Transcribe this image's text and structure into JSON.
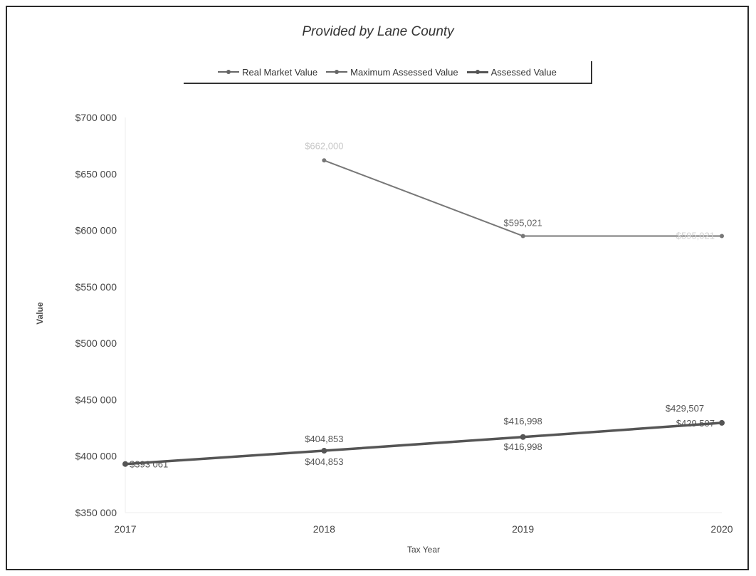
{
  "chart_data": {
    "type": "line",
    "title": "Provided by Lane County",
    "xlabel": "Tax Year",
    "ylabel": "Value",
    "x": [
      "2017",
      "2018",
      "2019",
      "2020"
    ],
    "y_ticks": [
      "$350 000",
      "$400 000",
      "$450 000",
      "$500 000",
      "$550 000",
      "$600 000",
      "$650 000",
      "$700 000"
    ],
    "ylim": [
      350000,
      700000
    ],
    "grid": false,
    "legend_position": "top",
    "series": [
      {
        "name": "Real Market Value",
        "values": [
          null,
          662000,
          595021,
          595021
        ],
        "labels": [
          "",
          "$662,000",
          "$595,021",
          "$595,021"
        ],
        "color": "#777777"
      },
      {
        "name": "Maximum Assessed Value",
        "values": [
          393061,
          404853,
          416998,
          429507
        ],
        "labels": [
          "",
          "$404,853",
          "$416,998",
          "$429,507"
        ],
        "color": "#888888"
      },
      {
        "name": "Assessed Value",
        "values": [
          393061,
          404853,
          416998,
          429507
        ],
        "labels": [
          "$393 061",
          "$404,853",
          "$416,998",
          "$429 507"
        ],
        "color": "#555555"
      }
    ]
  }
}
